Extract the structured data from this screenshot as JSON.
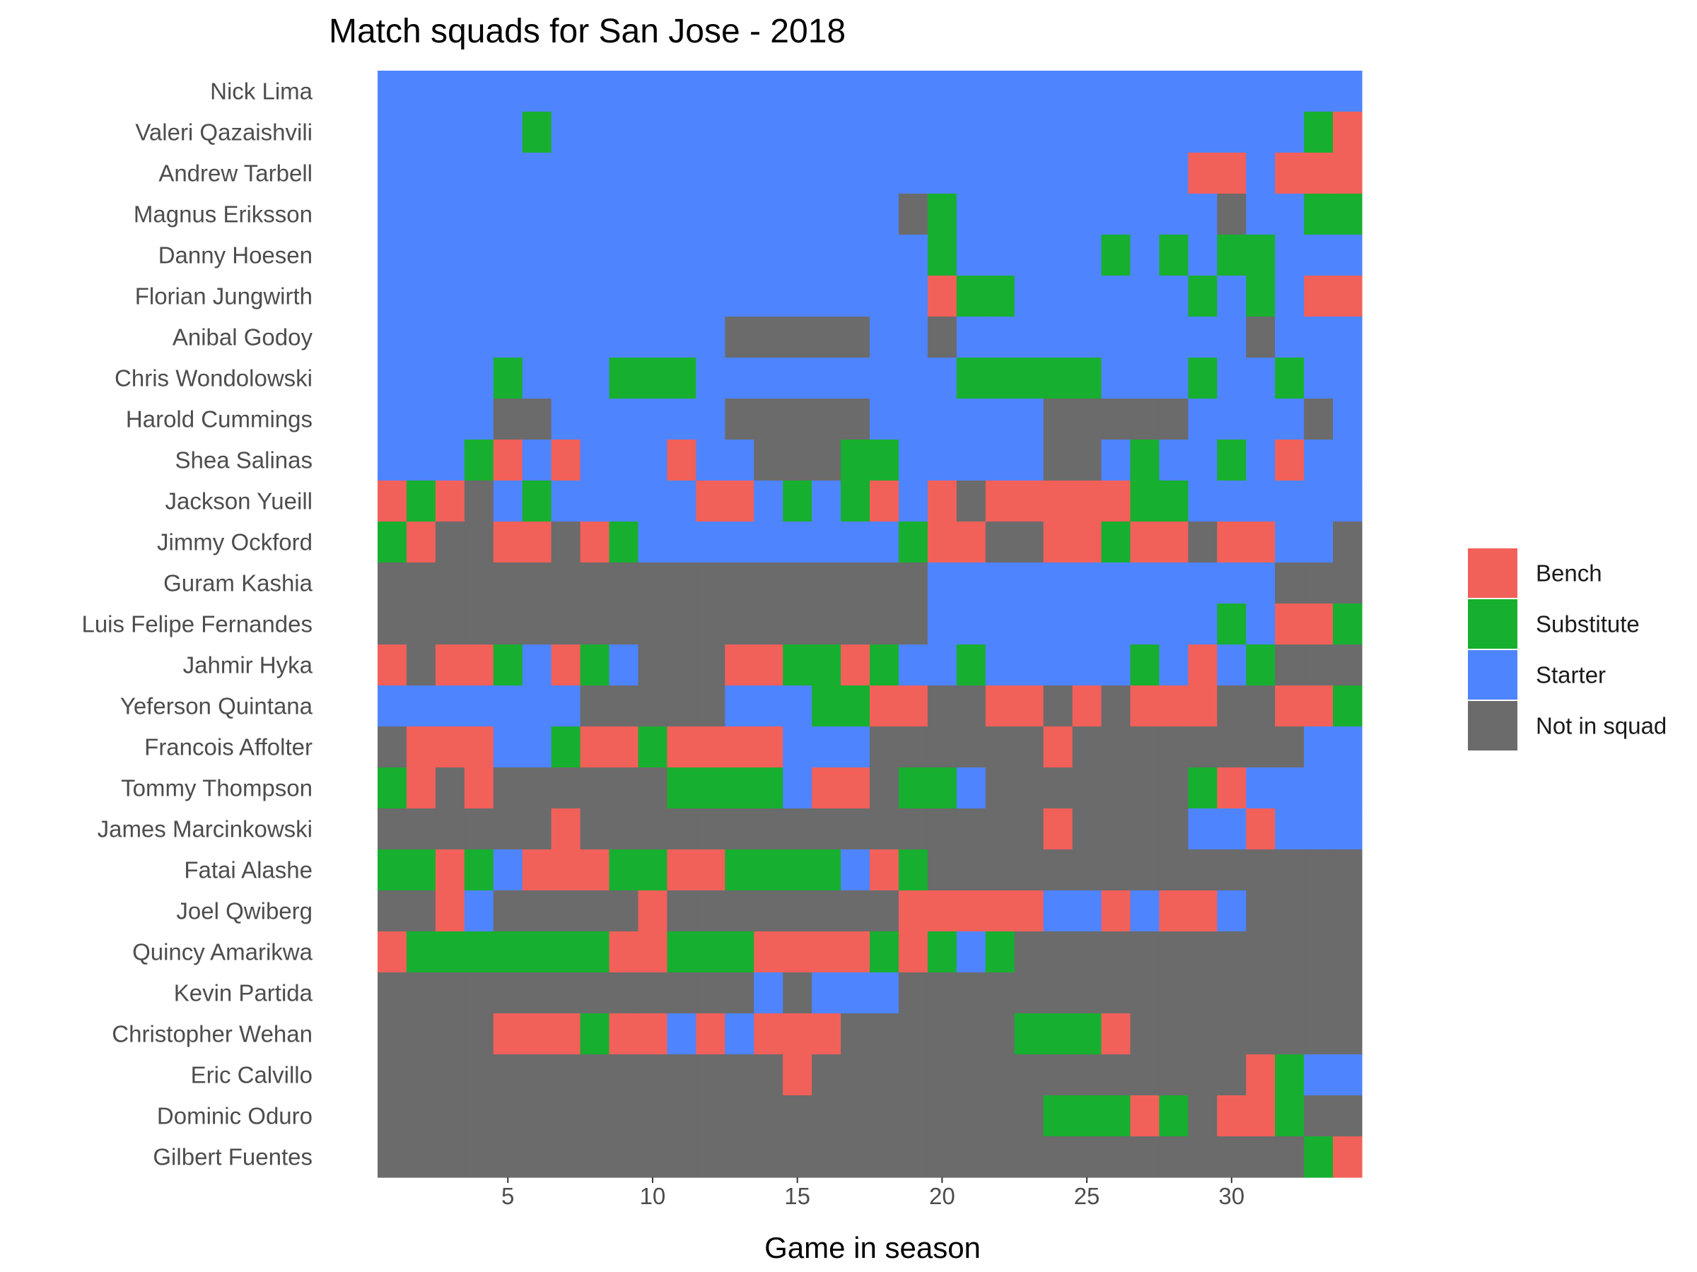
{
  "chart_data": {
    "type": "heatmap",
    "title": "Match squads for San Jose - 2018",
    "xlabel": "Game in season",
    "ylabel": "",
    "xlim": [
      0.5,
      34.5
    ],
    "x_ticks": [
      5,
      10,
      15,
      20,
      25,
      30
    ],
    "x": [
      1,
      2,
      3,
      4,
      5,
      6,
      7,
      8,
      9,
      10,
      11,
      12,
      13,
      14,
      15,
      16,
      17,
      18,
      19,
      20,
      21,
      22,
      23,
      24,
      25,
      26,
      27,
      28,
      29,
      30,
      31,
      32,
      33,
      34
    ],
    "grid": false,
    "legend_position": "right",
    "status_codes": {
      "B": "Bench",
      "U": "Substitute",
      "S": "Starter",
      "N": "Not in squad"
    },
    "legend": [
      {
        "code": "B",
        "label": "Bench",
        "color": "#F2605A"
      },
      {
        "code": "U",
        "label": "Substitute",
        "color": "#17AF2F"
      },
      {
        "code": "S",
        "label": "Starter",
        "color": "#4F84FF"
      },
      {
        "code": "N",
        "label": "Not in squad",
        "color": "#6B6B6B"
      }
    ],
    "players": [
      {
        "name": "Nick Lima",
        "games": "SSSSSSSSSSSSSSSSSSSSSSSSSSSSSSSSSS"
      },
      {
        "name": "Valeri Qazaishvili",
        "games": "SSSSSUSSSSSSSSSSSSSSSSSSSSSSSSSSUB"
      },
      {
        "name": "Andrew Tarbell",
        "games": "SSSSSSSSSSSSSSSSSSSSSSSSSSSSBBSBBB"
      },
      {
        "name": "Magnus Eriksson",
        "games": "SSSSSSSSSSSSSSSSSSNUSSSSSSSSSNSSUU"
      },
      {
        "name": "Danny Hoesen",
        "games": "SSSSSSSSSSSSSSSSSSSUSSSSSUSUSUUSSS"
      },
      {
        "name": "Florian Jungwirth",
        "games": "SSSSSSSSSSSSSSSSSSSBUUSSSSSSUSUSBB"
      },
      {
        "name": "Anibal Godoy",
        "games": "SSSSSSSSSSSSNNNNNSSNSSSSSSSSSSNSSS"
      },
      {
        "name": "Chris Wondolowski",
        "games": "SSSSUSSSUUUSSSSSSSSSUUUUUSSSUSSUSS"
      },
      {
        "name": "Harold Cummings",
        "games": "SSSSNNSSSSSSNNNNNSSSSSSNNNNNSSSSNS"
      },
      {
        "name": "Shea Salinas",
        "games": "SSSUBSBSSSBSSNNNUUSSSSSNNSUSSUSBSS"
      },
      {
        "name": "Jackson Yueill",
        "games": "BUBNSUSSSSSBBSUSUBSBNBBBBBUUSSSSSS"
      },
      {
        "name": "Jimmy Ockford",
        "games": "UBNNBBNBUSSSSSSSSSUBBNNBBUBBNBBSSN"
      },
      {
        "name": "Guram Kashia",
        "games": "NNNNNNNNNNNNNNNNNNNSSSSSSSSSSSSNNN"
      },
      {
        "name": "Luis Felipe Fernandes",
        "games": "NNNNNNNNNNNNNNNNNNNSSSSSSSSSSUSBBU"
      },
      {
        "name": "Jahmir Hyka",
        "games": "BNBBUSBUSNNNBBUUBUSSUSSSSSUSBSUNNN"
      },
      {
        "name": "Yeferson Quintana",
        "games": "SSSSSSSNNNNNSSSUUBBNNBBNBNBBBNNBBU"
      },
      {
        "name": "Francois Affolter",
        "games": "NBBBSSUBBUBBBBSSSNNNNNNBNNNNNNNNSS"
      },
      {
        "name": "Tommy Thompson",
        "games": "UBNBNNNNNNUUUUSBBNUUSNNNNNNNUBSSSS"
      },
      {
        "name": "James Marcinkowski",
        "games": "NNNNNNBNNNNNNNNNNNNNNNNBNNNNSSBSSS"
      },
      {
        "name": "Fatai Alashe",
        "games": "UUBUSBBBUUBBUUUUSBUNNNNNNNNNNNNNNN"
      },
      {
        "name": "Joel Qwiberg",
        "games": "NNBSNNNNNBNNNNNNNNBBBBBSSBSBBSNNNN"
      },
      {
        "name": "Quincy Amarikwa",
        "games": "BUUUUUUUBBUUUBBBBUBUSUNNNNNNNNNNNN"
      },
      {
        "name": "Kevin Partida",
        "games": "NNNNNNNNNNNNNSNSSSNNNNNNNNNNNNNNNN"
      },
      {
        "name": "Christopher Wehan",
        "games": "NNNNBBBUBBSBSBBBNNNNNNUUUBNNNNNNNN"
      },
      {
        "name": "Eric Calvillo",
        "games": "NNNNNNNNNNNNNNBNNNNNNNNNNNNNNNBUSS"
      },
      {
        "name": "Dominic Oduro",
        "games": "NNNNNNNNNNNNNNNNNNNNNNNUUUBUNBBUNN"
      },
      {
        "name": "Gilbert Fuentes",
        "games": "NNNNNNNNNNNNNNNNNNNNNNNNNNNNNNNNUB"
      }
    ]
  }
}
